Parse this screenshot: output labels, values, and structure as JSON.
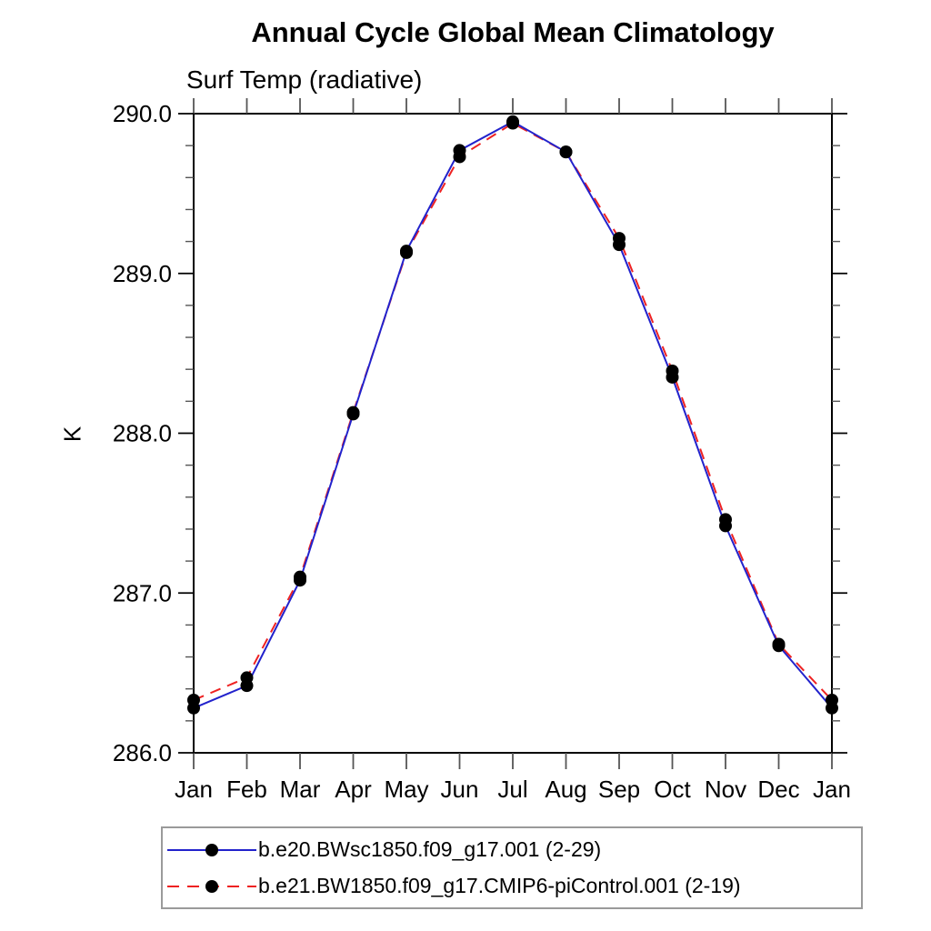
{
  "page": {
    "background": "#ffffff"
  },
  "chart_data": {
    "type": "line",
    "title": "Annual Cycle Global Mean Climatology",
    "subtitle": "Surf Temp (radiative)",
    "ylabel": "K",
    "xlabel": "",
    "categories": [
      "Jan",
      "Feb",
      "Mar",
      "Apr",
      "May",
      "Jun",
      "Jul",
      "Aug",
      "Sep",
      "Oct",
      "Nov",
      "Dec",
      "Jan"
    ],
    "ylim": [
      286.0,
      290.0
    ],
    "ytick_major": [
      286.0,
      287.0,
      288.0,
      289.0,
      290.0
    ],
    "ytick_minor_interval": 0.2,
    "ytick_label_format": "one_decimal",
    "grid": false,
    "legend_position": "bottom-left",
    "marker": "black-dot",
    "series": [
      {
        "name": "b.e20.BWsc1850.f09_g17.001 (2-29)",
        "color": "#2222cc",
        "style": "solid",
        "values": [
          286.28,
          286.42,
          287.08,
          288.12,
          289.14,
          289.77,
          289.95,
          289.76,
          289.18,
          288.35,
          287.42,
          286.67,
          286.28
        ]
      },
      {
        "name": "b.e21.BW1850.f09_g17.CMIP6-piControl.001 (2-19)",
        "color": "#ee2222",
        "style": "dashed",
        "values": [
          286.33,
          286.47,
          287.1,
          288.13,
          289.13,
          289.73,
          289.94,
          289.76,
          289.22,
          288.39,
          287.46,
          286.68,
          286.33
        ]
      }
    ],
    "colors": {
      "frame": "#000000",
      "tick": "#555555",
      "marker": "#000000",
      "text": "#000000",
      "legend_border": "#9a9a9a"
    }
  }
}
